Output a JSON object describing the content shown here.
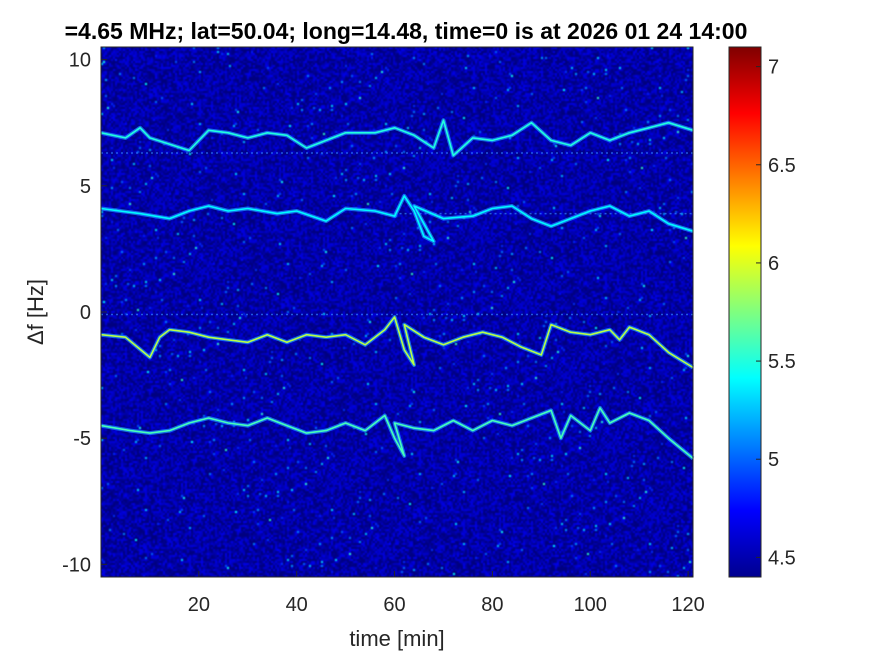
{
  "title": "=4.65 MHz;  lat=50.04; long=14.48, time=0 is at 2026 01 24 14:00",
  "chart_data": {
    "type": "heatmap",
    "xlabel": "time [min]",
    "ylabel": "Δf [Hz]",
    "xlim": [
      0,
      121
    ],
    "ylim": [
      -10.5,
      10.5
    ],
    "xticks": [
      20,
      40,
      60,
      80,
      100,
      120
    ],
    "yticks": [
      10,
      5,
      0,
      -5,
      -10
    ],
    "colorbar": {
      "range": [
        4.4,
        7.1
      ],
      "ticks": [
        7,
        6.5,
        6,
        5.5,
        5,
        4.5
      ],
      "colormap": "jet"
    },
    "background_level": 4.5,
    "traces": [
      {
        "points": [
          [
            0,
            7.1
          ],
          [
            5,
            6.9
          ],
          [
            8,
            7.3
          ],
          [
            10,
            6.9
          ],
          [
            18,
            6.4
          ],
          [
            22,
            7.2
          ],
          [
            26,
            7.1
          ],
          [
            30,
            6.9
          ],
          [
            34,
            7.1
          ],
          [
            38,
            7.0
          ],
          [
            42,
            6.5
          ],
          [
            46,
            6.8
          ],
          [
            50,
            7.1
          ],
          [
            56,
            7.1
          ],
          [
            60,
            7.3
          ],
          [
            64,
            7.0
          ],
          [
            68,
            6.5
          ],
          [
            70,
            7.6
          ],
          [
            72,
            6.2
          ],
          [
            76,
            6.9
          ],
          [
            80,
            6.8
          ],
          [
            84,
            7.0
          ],
          [
            88,
            7.5
          ],
          [
            92,
            6.8
          ],
          [
            96,
            6.6
          ],
          [
            100,
            7.1
          ],
          [
            104,
            6.8
          ],
          [
            108,
            7.1
          ],
          [
            112,
            7.3
          ],
          [
            116,
            7.5
          ],
          [
            121,
            7.2
          ]
        ],
        "level": 5.5
      },
      {
        "points": [
          [
            0,
            4.1
          ],
          [
            8,
            3.9
          ],
          [
            14,
            3.7
          ],
          [
            18,
            4.0
          ],
          [
            22,
            4.2
          ],
          [
            26,
            4.0
          ],
          [
            30,
            4.1
          ],
          [
            36,
            3.9
          ],
          [
            40,
            4.0
          ],
          [
            46,
            3.6
          ],
          [
            50,
            4.1
          ],
          [
            56,
            4.0
          ],
          [
            60,
            3.8
          ],
          [
            62,
            4.6
          ],
          [
            64,
            4.0
          ],
          [
            66,
            3.0
          ],
          [
            68,
            2.8
          ],
          [
            64,
            4.2
          ],
          [
            70,
            3.7
          ],
          [
            76,
            3.8
          ],
          [
            80,
            4.1
          ],
          [
            84,
            4.2
          ],
          [
            88,
            3.7
          ],
          [
            92,
            3.4
          ],
          [
            96,
            3.7
          ],
          [
            100,
            4.0
          ],
          [
            104,
            4.2
          ],
          [
            108,
            3.8
          ],
          [
            112,
            4.0
          ],
          [
            116,
            3.5
          ],
          [
            121,
            3.2
          ]
        ],
        "level": 5.4
      },
      {
        "points": [
          [
            0,
            -0.9
          ],
          [
            5,
            -1.0
          ],
          [
            10,
            -1.8
          ],
          [
            12,
            -1.0
          ],
          [
            14,
            -0.7
          ],
          [
            18,
            -0.8
          ],
          [
            22,
            -1.0
          ],
          [
            26,
            -1.1
          ],
          [
            30,
            -1.2
          ],
          [
            34,
            -0.9
          ],
          [
            38,
            -1.2
          ],
          [
            42,
            -0.9
          ],
          [
            46,
            -1.0
          ],
          [
            50,
            -0.9
          ],
          [
            54,
            -1.3
          ],
          [
            58,
            -0.7
          ],
          [
            60,
            -0.2
          ],
          [
            62,
            -1.5
          ],
          [
            64,
            -2.1
          ],
          [
            62,
            -0.5
          ],
          [
            66,
            -1.0
          ],
          [
            70,
            -1.3
          ],
          [
            74,
            -1.0
          ],
          [
            78,
            -0.8
          ],
          [
            82,
            -1.0
          ],
          [
            86,
            -1.4
          ],
          [
            90,
            -1.7
          ],
          [
            92,
            -0.5
          ],
          [
            96,
            -0.8
          ],
          [
            100,
            -0.9
          ],
          [
            104,
            -0.7
          ],
          [
            106,
            -1.1
          ],
          [
            108,
            -0.6
          ],
          [
            112,
            -0.9
          ],
          [
            116,
            -1.6
          ],
          [
            121,
            -2.2
          ]
        ],
        "level": 5.9
      },
      {
        "points": [
          [
            0,
            -4.5
          ],
          [
            6,
            -4.7
          ],
          [
            10,
            -4.8
          ],
          [
            14,
            -4.7
          ],
          [
            18,
            -4.4
          ],
          [
            22,
            -4.2
          ],
          [
            26,
            -4.4
          ],
          [
            30,
            -4.5
          ],
          [
            34,
            -4.2
          ],
          [
            38,
            -4.5
          ],
          [
            42,
            -4.8
          ],
          [
            46,
            -4.7
          ],
          [
            50,
            -4.4
          ],
          [
            54,
            -4.7
          ],
          [
            58,
            -4.1
          ],
          [
            60,
            -5.0
          ],
          [
            62,
            -5.7
          ],
          [
            60,
            -4.4
          ],
          [
            64,
            -4.6
          ],
          [
            68,
            -4.7
          ],
          [
            72,
            -4.3
          ],
          [
            76,
            -4.7
          ],
          [
            80,
            -4.3
          ],
          [
            84,
            -4.5
          ],
          [
            88,
            -4.2
          ],
          [
            92,
            -3.9
          ],
          [
            94,
            -5.0
          ],
          [
            96,
            -4.1
          ],
          [
            100,
            -4.7
          ],
          [
            102,
            -3.8
          ],
          [
            104,
            -4.4
          ],
          [
            108,
            -4.0
          ],
          [
            112,
            -4.3
          ],
          [
            116,
            -5.0
          ],
          [
            121,
            -5.8
          ]
        ],
        "level": 5.6
      }
    ],
    "faint_lines": [
      {
        "y": 6.3,
        "x_range": [
          0,
          121
        ]
      },
      {
        "y": 3.9,
        "x_range": [
          60,
          121
        ]
      },
      {
        "y": -0.1,
        "x_range": [
          0,
          121
        ]
      }
    ]
  }
}
